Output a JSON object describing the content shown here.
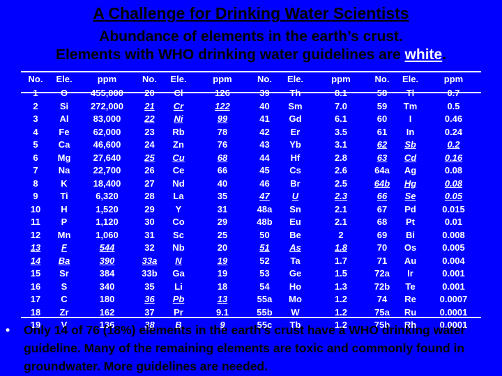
{
  "title": "A Challenge for Drinking Water Scientists",
  "subtitle_line1": "Abundance of elements in the earth’s crust.",
  "subtitle_line2_pre": "Elements with WHO drinking water guidelines are ",
  "subtitle_line2_emph": "white",
  "subtitle_line2_post": ".",
  "headers": [
    "No.",
    "Ele.",
    "ppm"
  ],
  "colors": {
    "background": "#0000ff",
    "guideline": "#ffffff",
    "other": "#000000"
  },
  "blocks": [
    [
      [
        "1",
        "O",
        "455,000",
        0
      ],
      [
        "2",
        "Si",
        "272,000",
        0
      ],
      [
        "3",
        "Al",
        "83,000",
        0
      ],
      [
        "4",
        "Fe",
        "62,000",
        0
      ],
      [
        "5",
        "Ca",
        "46,600",
        0
      ],
      [
        "6",
        "Mg",
        "27,640",
        0
      ],
      [
        "7",
        "Na",
        "22,700",
        0
      ],
      [
        "8",
        "K",
        "18,400",
        0
      ],
      [
        "9",
        "Ti",
        "6,320",
        0
      ],
      [
        "10",
        "H",
        "1,520",
        0
      ],
      [
        "11",
        "P",
        "1,120",
        0
      ],
      [
        "12",
        "Mn",
        "1,060",
        0
      ],
      [
        "13",
        "F",
        "544",
        1
      ],
      [
        "14",
        "Ba",
        "390",
        1
      ],
      [
        "15",
        "Sr",
        "384",
        0
      ],
      [
        "16",
        "S",
        "340",
        0
      ],
      [
        "17",
        "C",
        "180",
        0
      ],
      [
        "18",
        "Zr",
        "162",
        0
      ],
      [
        "19",
        "V",
        "136",
        0
      ]
    ],
    [
      [
        "20",
        "Cl",
        "126",
        0
      ],
      [
        "21",
        "Cr",
        "122",
        1
      ],
      [
        "22",
        "Ni",
        "99",
        1
      ],
      [
        "23",
        "Rb",
        "78",
        0
      ],
      [
        "24",
        "Zn",
        "76",
        0
      ],
      [
        "25",
        "Cu",
        "68",
        1
      ],
      [
        "26",
        "Ce",
        "66",
        0
      ],
      [
        "27",
        "Nd",
        "40",
        0
      ],
      [
        "28",
        "La",
        "35",
        0
      ],
      [
        "29",
        "Y",
        "31",
        0
      ],
      [
        "30",
        "Co",
        "29",
        0
      ],
      [
        "31",
        "Sc",
        "25",
        0
      ],
      [
        "32",
        "Nb",
        "20",
        0
      ],
      [
        "33a",
        "N",
        "19",
        1
      ],
      [
        "33b",
        "Ga",
        "19",
        0
      ],
      [
        "35",
        "Li",
        "18",
        0
      ],
      [
        "36",
        "Pb",
        "13",
        1
      ],
      [
        "37",
        "Pr",
        "9.1",
        0
      ],
      [
        "38",
        "B",
        "9",
        1
      ]
    ],
    [
      [
        "39",
        "Th",
        "8.1",
        0
      ],
      [
        "40",
        "Sm",
        "7.0",
        0
      ],
      [
        "41",
        "Gd",
        "6.1",
        0
      ],
      [
        "42",
        "Er",
        "3.5",
        0
      ],
      [
        "43",
        "Yb",
        "3.1",
        0
      ],
      [
        "44",
        "Hf",
        "2.8",
        0
      ],
      [
        "45",
        "Cs",
        "2.6",
        0
      ],
      [
        "46",
        "Br",
        "2.5",
        0
      ],
      [
        "47",
        "U",
        "2.3",
        1
      ],
      [
        "48a",
        "Sn",
        "2.1",
        0
      ],
      [
        "48b",
        "Eu",
        "2.1",
        0
      ],
      [
        "50",
        "Be",
        "2",
        0
      ],
      [
        "51",
        "As",
        "1.8",
        1
      ],
      [
        "52",
        "Ta",
        "1.7",
        0
      ],
      [
        "53",
        "Ge",
        "1.5",
        0
      ],
      [
        "54",
        "Ho",
        "1.3",
        0
      ],
      [
        "55a",
        "Mo",
        "1.2",
        0
      ],
      [
        "55b",
        "W",
        "1.2",
        0
      ],
      [
        "55c",
        "Tb",
        "1.2",
        0
      ]
    ],
    [
      [
        "58",
        "Tl",
        "0.7",
        0
      ],
      [
        "59",
        "Tm",
        "0.5",
        0
      ],
      [
        "60",
        "I",
        "0.46",
        0
      ],
      [
        "61",
        "In",
        "0.24",
        0
      ],
      [
        "62",
        "Sb",
        "0.2",
        1
      ],
      [
        "63",
        "Cd",
        "0.16",
        1
      ],
      [
        "64a",
        "Ag",
        "0.08",
        0
      ],
      [
        "64b",
        "Hg",
        "0.08",
        1
      ],
      [
        "66",
        "Se",
        "0.05",
        1
      ],
      [
        "67",
        "Pd",
        "0.015",
        0
      ],
      [
        "68",
        "Pt",
        "0.01",
        0
      ],
      [
        "69",
        "Bi",
        "0.008",
        0
      ],
      [
        "70",
        "Os",
        "0.005",
        0
      ],
      [
        "71",
        "Au",
        "0.004",
        0
      ],
      [
        "72a",
        "Ir",
        "0.001",
        0
      ],
      [
        "72b",
        "Te",
        "0.001",
        0
      ],
      [
        "74",
        "Re",
        "0.0007",
        0
      ],
      [
        "75a",
        "Ru",
        "0.0001",
        0
      ],
      [
        "75b",
        "Rh",
        "0.0001",
        0
      ]
    ]
  ],
  "bullet_symbol": "•",
  "bullet_text": "Only 14 of 76 (18%) elements in the earth’s crust have a WHO drinking water guideline. Many of the remaining elements are toxic and commonly found in groundwater. More guidelines are needed."
}
